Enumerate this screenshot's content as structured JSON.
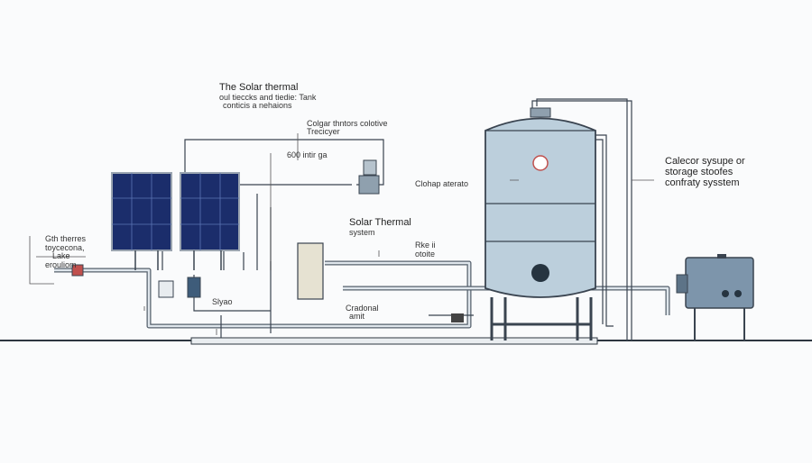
{
  "labels": [
    {
      "lines": [
        "The Solar thermal",
        "oul tieccks and tiedie: Tank",
        "conticis a nehaions"
      ]
    },
    {
      "lines": [
        "Colgar thntors colotive",
        "Trecicyer"
      ]
    },
    {
      "lines": [
        "600 intir ga"
      ]
    },
    {
      "lines": [
        "Clohap aterato"
      ]
    },
    {
      "lines": [
        "Solar Thermal",
        "system"
      ]
    },
    {
      "lines": [
        "Rke ii",
        "otoite"
      ]
    },
    {
      "lines": [
        "Calecor sysupe or",
        "storage stoofes",
        "confraty sysstem"
      ]
    },
    {
      "lines": [
        "Gth therres",
        "toycecona,",
        "Lake",
        "erouliom"
      ]
    },
    {
      "lines": [
        "Slyao"
      ]
    },
    {
      "lines": [
        "Cradonal",
        "amit"
      ]
    }
  ]
}
